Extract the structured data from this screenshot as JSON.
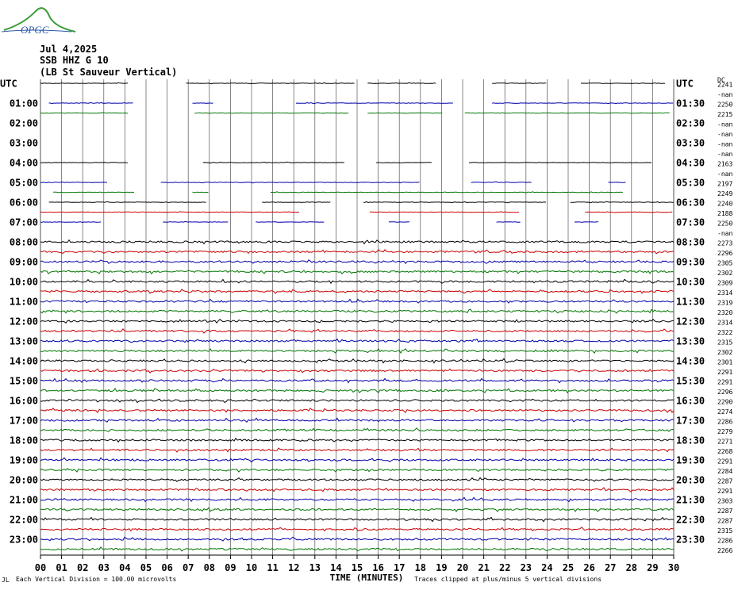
{
  "logo": "OPGC",
  "header": {
    "date": "Jul 4,2025",
    "station": "SSB HHZ G 10",
    "site": "(LB St Sauveur Vertical)"
  },
  "left_labels": [
    "UTC",
    "01:00",
    "02:00",
    "03:00",
    "04:00",
    "05:00",
    "06:00",
    "07:00",
    "08:00",
    "09:00",
    "10:00",
    "11:00",
    "12:00",
    "13:00",
    "14:00",
    "15:00",
    "16:00",
    "17:00",
    "18:00",
    "19:00",
    "20:00",
    "21:00",
    "22:00",
    "23:00"
  ],
  "right_labels": [
    "UTC",
    "01:30",
    "02:30",
    "03:30",
    "04:30",
    "05:30",
    "06:30",
    "07:30",
    "08:30",
    "09:30",
    "10:30",
    "11:30",
    "12:30",
    "13:30",
    "14:30",
    "15:30",
    "16:30",
    "17:30",
    "18:30",
    "19:30",
    "20:30",
    "21:30",
    "22:30",
    "23:30"
  ],
  "dc_header": "DC",
  "dc_values": [
    "2241",
    "-nan",
    "2250",
    "2215",
    "-nan",
    "-nan",
    "-nan",
    "-nan",
    "2163",
    "-nan",
    "2197",
    "2249",
    "2240",
    "2188",
    "2250",
    "-nan",
    "2273",
    "2296",
    "2305",
    "2302",
    "2309",
    "2314",
    "2319",
    "2320",
    "2314",
    "2322",
    "2315",
    "2302",
    "2301",
    "2291",
    "2291",
    "2296",
    "2290",
    "2274",
    "2286",
    "2279",
    "2271",
    "2268",
    "2291",
    "2284",
    "2287",
    "2291",
    "2303",
    "2287",
    "2287",
    "2315",
    "2286",
    "2266"
  ],
  "x_ticks": [
    "00",
    "01",
    "02",
    "03",
    "04",
    "05",
    "06",
    "07",
    "08",
    "09",
    "10",
    "11",
    "12",
    "13",
    "14",
    "15",
    "16",
    "17",
    "18",
    "19",
    "20",
    "21",
    "22",
    "23",
    "24",
    "25",
    "26",
    "27",
    "28",
    "29",
    "30"
  ],
  "x_title": "TIME (MINUTES)",
  "footer": {
    "corner": "JL",
    "scale": "Each Vertical Division =  100.00 microvolts",
    "clip": "Traces clipped at plus/minus 5 vertical divisions"
  }
}
